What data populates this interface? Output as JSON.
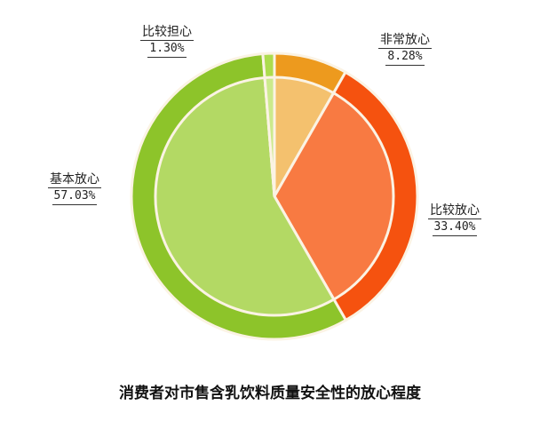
{
  "chart_data": {
    "type": "pie",
    "title": "消费者对市售含乳饮料质量安全性的放心程度",
    "categories": [
      "非常放心",
      "比较放心",
      "基本放心",
      "比较担心"
    ],
    "values": [
      8.28,
      33.4,
      57.03,
      1.3
    ],
    "value_labels": [
      "8.28%",
      "33.40%",
      "57.03%",
      "1.30%"
    ],
    "colors_outer": [
      "#ED9A1E",
      "#F5520F",
      "#8DC42A",
      "#ACDC4E"
    ],
    "colors_inner": [
      "#F4C16E",
      "#F87A42",
      "#B3D964",
      "#CBEA8C"
    ],
    "start_angle": "12 o'clock",
    "direction": "clockwise",
    "legend": "none"
  }
}
